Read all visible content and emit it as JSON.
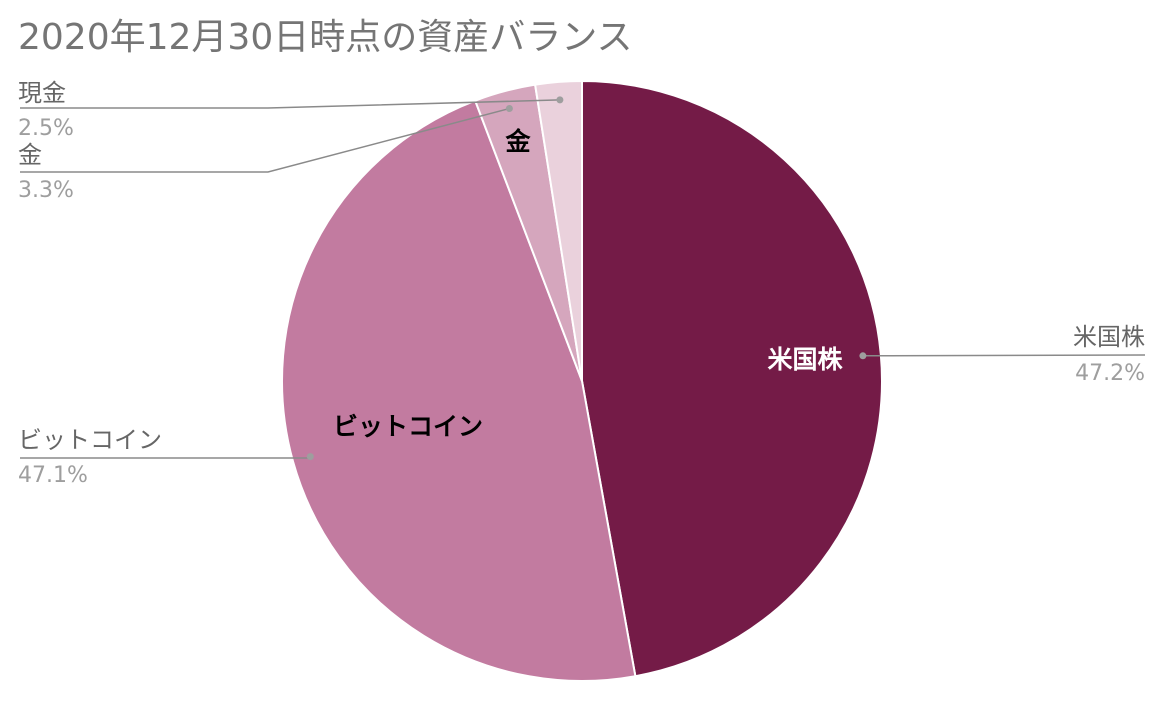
{
  "chart_data": {
    "type": "pie",
    "title": "2020年12月30日時点の資産バランス",
    "slices": [
      {
        "label": "米国株",
        "value": 47.2,
        "percent_label": "47.2%",
        "color": "#741b47",
        "inner_label": "米国株",
        "inner_label_color": "#ffffff"
      },
      {
        "label": "ビットコイン",
        "value": 47.1,
        "percent_label": "47.1%",
        "color": "#c27ba0",
        "inner_label": "ビットコイン",
        "inner_label_color": "#000000"
      },
      {
        "label": "金",
        "value": 3.3,
        "percent_label": "3.3%",
        "color": "#d5a6bd",
        "inner_label": "金",
        "inner_label_color": "#000000"
      },
      {
        "label": "現金",
        "value": 2.5,
        "percent_label": "2.5%",
        "color": "#ead1dc",
        "inner_label": "",
        "inner_label_color": "#000000"
      }
    ],
    "start_angle_deg": 0,
    "direction": "clockwise",
    "legend": "none",
    "external_labels": "leader-lines"
  }
}
